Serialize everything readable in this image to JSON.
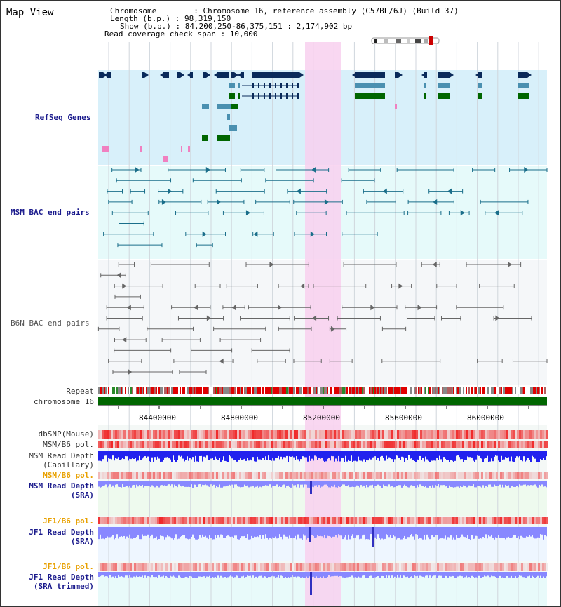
{
  "title": "Map View",
  "info": {
    "chromosome": "Chromosome        : Chromosome 16, reference assembly (C57BL/6J) (Build 37)",
    "length": "Length (b.p.) : 98,319,150",
    "show": "Show (b.p.) : 84,200,250-86,375,151 : 2,174,902 bp",
    "span": "Read coverage check span : 10,000"
  },
  "tracks": {
    "refseq": "RefSeq Genes",
    "msm_bac": "MSM BAC end pairs",
    "b6n_bac": "B6N BAC end pairs",
    "repeat": "Repeat",
    "chromosome": "chromosome 16",
    "dbsnp": "dbSNP(Mouse)",
    "msm_b6_pol": "MSM/B6 pol.",
    "msm_depth_cap_1": "MSM Read Depth",
    "msm_depth_cap_2": "(Capillary)",
    "msm_b6_pol_2": "MSM/B6 pol.",
    "msm_depth_sra_1": "MSM Read Depth",
    "msm_depth_sra_2": "(SRA)",
    "jf1_b6_pol": "JF1/B6 pol.",
    "jf1_depth_sra_1": "JF1 Read Depth",
    "jf1_depth_sra_2": "(SRA)",
    "jf1_b6_pol_2": "JF1/B6 pol.",
    "jf1_depth_trim_1": "JF1 Read Depth",
    "jf1_depth_trim_2": "(SRA trimmed)"
  },
  "axis": {
    "ticks": [
      "84400000",
      "84800000",
      "85200000",
      "85600000",
      "86000000"
    ]
  },
  "colors": {
    "refseq_bg": "#d8f0fa",
    "msm_bg": "#e6fafa",
    "b6n_bg": "#f5f7f9",
    "highlight": "#f8d0ee",
    "navy_gene": "#0a2a5a",
    "teal_gene": "#4a90b0",
    "green_gene": "#006600",
    "pink_gene": "#f080c0",
    "bac_msm": "#1a6e8a",
    "bac_b6n": "#666666",
    "chromosome_bar": "#006600",
    "depth_blue": "#2222ee",
    "depth_light": "#8888ff"
  }
}
